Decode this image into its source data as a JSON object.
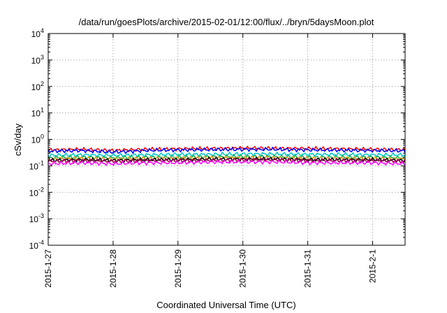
{
  "chart_data": {
    "type": "line",
    "title": "/data/run/goesPlots/archive/2015-02-01/12:00/flux/../bryn/5daysMoon.plot",
    "xlabel": "Coordinated Universal Time (UTC)",
    "ylabel": "cSv/day",
    "yscale": "log",
    "ylim": [
      0.0001,
      10000
    ],
    "y_ticks": [
      {
        "value": 0.0001,
        "base": "10",
        "exp": "-4"
      },
      {
        "value": 0.001,
        "base": "10",
        "exp": "-3"
      },
      {
        "value": 0.01,
        "base": "10",
        "exp": "-2"
      },
      {
        "value": 0.1,
        "base": "10",
        "exp": "-1"
      },
      {
        "value": 1,
        "base": "10",
        "exp": "0"
      },
      {
        "value": 10,
        "base": "10",
        "exp": "1"
      },
      {
        "value": 100,
        "base": "10",
        "exp": "2"
      },
      {
        "value": 1000,
        "base": "10",
        "exp": "3"
      },
      {
        "value": 10000,
        "base": "10",
        "exp": "4"
      }
    ],
    "xlim": [
      "2015-01-27T00:00",
      "2015-02-01T12:00"
    ],
    "x_ticks": [
      {
        "value": "2015-01-27T00:00",
        "label": "2015-1-27"
      },
      {
        "value": "2015-01-28T00:00",
        "label": "2015-1-28"
      },
      {
        "value": "2015-01-29T00:00",
        "label": "2015-1-29"
      },
      {
        "value": "2015-01-30T00:00",
        "label": "2015-1-30"
      },
      {
        "value": "2015-01-31T00:00",
        "label": "2015-1-31"
      },
      {
        "value": "2015-02-01T00:00",
        "label": "2015-2-1"
      }
    ],
    "grid": true,
    "x": [
      "2015-01-27T00:00",
      "2015-01-27T12:00",
      "2015-01-28T00:00",
      "2015-01-28T12:00",
      "2015-01-29T00:00",
      "2015-01-29T12:00",
      "2015-01-30T00:00",
      "2015-01-30T12:00",
      "2015-01-31T00:00",
      "2015-01-31T12:00",
      "2015-02-01T00:00",
      "2015-02-01T12:00"
    ],
    "series": [
      {
        "color": "#ff0000",
        "values": [
          0.4,
          0.42,
          0.38,
          0.42,
          0.44,
          0.45,
          0.47,
          0.46,
          0.45,
          0.44,
          0.42,
          0.41
        ]
      },
      {
        "color": "#0000ff",
        "values": [
          0.36,
          0.38,
          0.33,
          0.38,
          0.4,
          0.41,
          0.42,
          0.42,
          0.4,
          0.39,
          0.38,
          0.37
        ]
      },
      {
        "color": "#00c8c8",
        "values": [
          0.25,
          0.26,
          0.25,
          0.26,
          0.27,
          0.27,
          0.28,
          0.28,
          0.27,
          0.27,
          0.26,
          0.26
        ]
      },
      {
        "color": "#20b050",
        "values": [
          0.2,
          0.21,
          0.2,
          0.21,
          0.21,
          0.22,
          0.22,
          0.22,
          0.21,
          0.21,
          0.21,
          0.2
        ]
      },
      {
        "color": "#e0a020",
        "values": [
          0.18,
          0.19,
          0.18,
          0.19,
          0.19,
          0.2,
          0.2,
          0.2,
          0.19,
          0.19,
          0.19,
          0.18
        ]
      },
      {
        "color": "#000000",
        "values": [
          0.16,
          0.17,
          0.16,
          0.17,
          0.17,
          0.18,
          0.18,
          0.18,
          0.17,
          0.17,
          0.17,
          0.16
        ]
      },
      {
        "color": "#a00050",
        "values": [
          0.15,
          0.16,
          0.15,
          0.16,
          0.16,
          0.16,
          0.17,
          0.17,
          0.16,
          0.16,
          0.16,
          0.15
        ]
      },
      {
        "color": "#ff00ff",
        "values": [
          0.12,
          0.13,
          0.12,
          0.13,
          0.13,
          0.14,
          0.14,
          0.14,
          0.13,
          0.13,
          0.13,
          0.12
        ]
      }
    ]
  }
}
